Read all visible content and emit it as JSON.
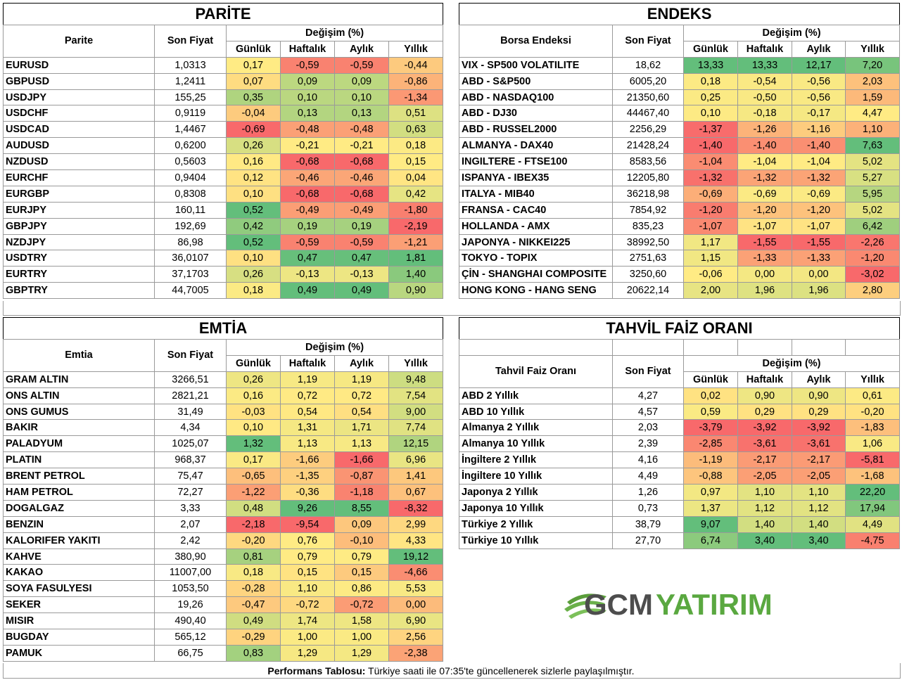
{
  "colors": {
    "green": "#63be7b",
    "yellow": "#ffeb84",
    "red": "#f8696b"
  },
  "parite": {
    "title": "PARİTE",
    "col_name": "Parite",
    "col_price": "Son Fiyat",
    "col_change": "Değişim (%)",
    "periods": [
      "Günlük",
      "Haftalık",
      "Aylık",
      "Yıllık"
    ],
    "rows": [
      [
        "EURUSD",
        "1,0313",
        "0,17",
        "-0,59",
        "-0,59",
        "-0,44"
      ],
      [
        "GBPUSD",
        "1,2411",
        "0,07",
        "0,09",
        "0,09",
        "-0,86"
      ],
      [
        "USDJPY",
        "155,25",
        "0,35",
        "0,10",
        "0,10",
        "-1,34"
      ],
      [
        "USDCHF",
        "0,9119",
        "-0,04",
        "0,13",
        "0,13",
        "0,51"
      ],
      [
        "USDCAD",
        "1,4467",
        "-0,69",
        "-0,48",
        "-0,48",
        "0,63"
      ],
      [
        "AUDUSD",
        "0,6200",
        "0,26",
        "-0,21",
        "-0,21",
        "0,18"
      ],
      [
        "NZDUSD",
        "0,5603",
        "0,16",
        "-0,68",
        "-0,68",
        "0,15"
      ],
      [
        "EURCHF",
        "0,9404",
        "0,12",
        "-0,46",
        "-0,46",
        "0,04"
      ],
      [
        "EURGBP",
        "0,8308",
        "0,10",
        "-0,68",
        "-0,68",
        "0,42"
      ],
      [
        "EURJPY",
        "160,11",
        "0,52",
        "-0,49",
        "-0,49",
        "-1,80"
      ],
      [
        "GBPJPY",
        "192,69",
        "0,42",
        "0,19",
        "0,19",
        "-2,19"
      ],
      [
        "NZDJPY",
        "86,98",
        "0,52",
        "-0,59",
        "-0,59",
        "-1,21"
      ],
      [
        "USDTRY",
        "36,0107",
        "0,10",
        "0,47",
        "0,47",
        "1,81"
      ],
      [
        "EURTRY",
        "37,1703",
        "0,26",
        "-0,13",
        "-0,13",
        "1,40"
      ],
      [
        "GBPTRY",
        "44,7005",
        "0,18",
        "0,49",
        "0,49",
        "0,90"
      ]
    ]
  },
  "endeks": {
    "title": "ENDEKS",
    "col_name": "Borsa Endeksi",
    "col_price": "Son Fiyat",
    "col_change": "Değişim (%)",
    "periods": [
      "Günlük",
      "Haftalık",
      "Aylık",
      "Yıllık"
    ],
    "rows": [
      [
        "VIX  - SP500 VOLATILITE",
        "18,62",
        "13,33",
        "13,33",
        "12,17",
        "7,20"
      ],
      [
        "ABD - S&P500",
        "6005,20",
        "0,18",
        "-0,54",
        "-0,56",
        "2,03"
      ],
      [
        "ABD - NASDAQ100",
        "21350,60",
        "0,25",
        "-0,50",
        "-0,56",
        "1,59"
      ],
      [
        "ABD - DJ30",
        "44467,40",
        "0,10",
        "-0,18",
        "-0,17",
        "4,47"
      ],
      [
        "ABD - RUSSEL2000",
        "2256,29",
        "-1,37",
        "-1,26",
        "-1,16",
        "1,10"
      ],
      [
        "ALMANYA - DAX40",
        "21428,24",
        "-1,40",
        "-1,40",
        "-1,40",
        "7,63"
      ],
      [
        "INGILTERE - FTSE100",
        "8583,56",
        "-1,04",
        "-1,04",
        "-1,04",
        "5,02"
      ],
      [
        "ISPANYA - IBEX35",
        "12205,80",
        "-1,32",
        "-1,32",
        "-1,32",
        "5,27"
      ],
      [
        "ITALYA - MIB40",
        "36218,98",
        "-0,69",
        "-0,69",
        "-0,69",
        "5,95"
      ],
      [
        "FRANSA - CAC40",
        "7854,92",
        "-1,20",
        "-1,20",
        "-1,20",
        "5,02"
      ],
      [
        "HOLLANDA - AMX",
        "835,23",
        "-1,07",
        "-1,07",
        "-1,07",
        "6,42"
      ],
      [
        "JAPONYA - NIKKEI225",
        "38992,50",
        "1,17",
        "-1,55",
        "-1,55",
        "-2,26"
      ],
      [
        "TOKYO - TOPIX",
        "2751,63",
        "1,15",
        "-1,33",
        "-1,33",
        "-1,20"
      ],
      [
        "ÇİN - SHANGHAI COMPOSITE",
        "3250,60",
        "-0,06",
        "0,00",
        "0,00",
        "-3,02"
      ],
      [
        "HONG KONG - HANG SENG",
        "20622,14",
        "2,00",
        "1,96",
        "1,96",
        "2,80"
      ]
    ]
  },
  "emtia": {
    "title": "EMTİA",
    "col_name": "Emtia",
    "col_price": "Son Fiyat",
    "col_change": "Değişim (%)",
    "periods": [
      "Günlük",
      "Haftalık",
      "Aylık",
      "Yıllık"
    ],
    "rows": [
      [
        "GRAM ALTIN",
        "3266,51",
        "0,26",
        "1,19",
        "1,19",
        "9,48"
      ],
      [
        "ONS ALTIN",
        "2821,21",
        "0,16",
        "0,72",
        "0,72",
        "7,54"
      ],
      [
        "ONS GUMUS",
        "31,49",
        "-0,03",
        "0,54",
        "0,54",
        "9,00"
      ],
      [
        "BAKIR",
        "4,34",
        "0,10",
        "1,31",
        "1,71",
        "7,74"
      ],
      [
        "PALADYUM",
        "1025,07",
        "1,32",
        "1,13",
        "1,13",
        "12,15"
      ],
      [
        "PLATIN",
        "968,37",
        "0,17",
        "-1,66",
        "-1,66",
        "6,96"
      ],
      [
        "BRENT PETROL",
        "75,47",
        "-0,65",
        "-1,35",
        "-0,87",
        "1,41"
      ],
      [
        "HAM PETROL",
        "72,27",
        "-1,22",
        "-0,36",
        "-1,18",
        "0,67"
      ],
      [
        "DOGALGAZ",
        "3,33",
        "0,48",
        "9,26",
        "8,55",
        "-8,32"
      ],
      [
        "BENZIN",
        "2,07",
        "-2,18",
        "-9,54",
        "0,09",
        "2,99"
      ],
      [
        "KALORIFER YAKITI",
        "2,42",
        "-0,20",
        "0,76",
        "-0,10",
        "4,33"
      ],
      [
        "KAHVE",
        "380,90",
        "0,81",
        "0,79",
        "0,79",
        "19,12"
      ],
      [
        "KAKAO",
        "11007,00",
        "0,18",
        "0,15",
        "0,15",
        "-4,66"
      ],
      [
        "SOYA FASULYESI",
        "1053,50",
        "-0,28",
        "1,10",
        "0,86",
        "5,53"
      ],
      [
        "SEKER",
        "19,26",
        "-0,47",
        "-0,72",
        "-0,72",
        "0,00"
      ],
      [
        "MISIR",
        "490,40",
        "0,49",
        "1,74",
        "1,58",
        "6,90"
      ],
      [
        "BUGDAY",
        "565,12",
        "-0,29",
        "1,00",
        "1,00",
        "2,56"
      ],
      [
        "PAMUK",
        "66,75",
        "0,83",
        "1,29",
        "1,29",
        "-2,38"
      ]
    ]
  },
  "tahvil": {
    "title": "TAHVİL FAİZ ORANI",
    "col_name": "Tahvil Faiz Oranı",
    "col_price": "Son Fiyat",
    "col_change": "Değişim (%)",
    "periods": [
      "Günlük",
      "Haftalık",
      "Aylık",
      "Yıllık"
    ],
    "rows": [
      [
        "ABD 2 Yıllık",
        "4,27",
        "0,02",
        "0,90",
        "0,90",
        "0,61"
      ],
      [
        "ABD 10 Yıllık",
        "4,57",
        "0,59",
        "0,29",
        "0,29",
        "-0,20"
      ],
      [
        "Almanya 2 Yıllık",
        "2,03",
        "-3,79",
        "-3,92",
        "-3,92",
        "-1,83"
      ],
      [
        "Almanya 10 Yıllık",
        "2,39",
        "-2,85",
        "-3,61",
        "-3,61",
        "1,06"
      ],
      [
        "İngiltere 2 Yıllık",
        "4,16",
        "-1,19",
        "-2,17",
        "-2,17",
        "-5,81"
      ],
      [
        "İngiltere 10 Yıllık",
        "4,49",
        "-0,88",
        "-2,05",
        "-2,05",
        "-1,68"
      ],
      [
        "Japonya 2 Yıllık",
        "1,26",
        "0,97",
        "1,10",
        "1,10",
        "22,20"
      ],
      [
        "Japonya 10 Yıllık",
        "0,73",
        "1,37",
        "1,12",
        "1,12",
        "17,94"
      ],
      [
        "Türkiye 2 Yıllık",
        "38,79",
        "9,07",
        "1,40",
        "1,40",
        "4,49"
      ],
      [
        "Türkiye 10 Yıllık",
        "27,70",
        "6,74",
        "3,40",
        "3,40",
        "-4,75"
      ]
    ]
  },
  "logo": {
    "text_gcm": "GCM",
    "text_yatirim": "YATIRIM"
  },
  "footer": {
    "label": "Performans Tablosu:",
    "text": " Türkiye saati ile 07:35'te güncellenerek sizlerle paylaşılmıştır."
  }
}
